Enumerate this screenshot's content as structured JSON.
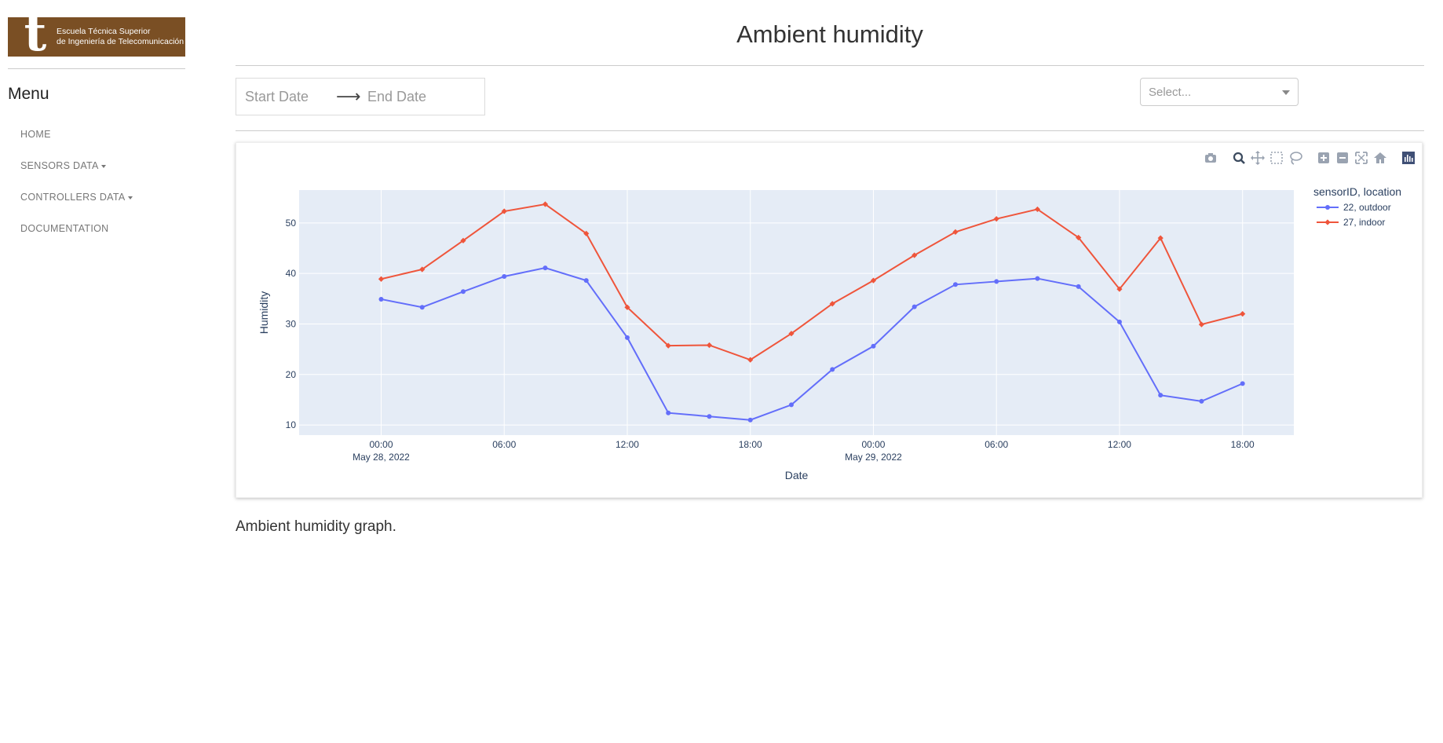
{
  "sidebar": {
    "logo_letter": "t",
    "logo_line1": "Escuela Técnica Superior",
    "logo_line2": "de Ingeniería de Telecomunicación",
    "menu_title": "Menu",
    "items": [
      {
        "label": "HOME",
        "dropdown": false
      },
      {
        "label": "SENSORS DATA",
        "dropdown": true
      },
      {
        "label": "CONTROLLERS DATA",
        "dropdown": true
      },
      {
        "label": "DOCUMENTATION",
        "dropdown": false
      }
    ]
  },
  "header": {
    "title": "Ambient humidity"
  },
  "filters": {
    "start_placeholder": "Start Date",
    "end_placeholder": "End Date",
    "select_placeholder": "Select..."
  },
  "modebar": {
    "icons": [
      "camera-icon",
      "zoom-icon",
      "pan-icon",
      "box-select-icon",
      "lasso-select-icon",
      "zoom-in-icon",
      "zoom-out-icon",
      "autoscale-icon",
      "reset-axes-icon",
      "plotly-logo-icon"
    ],
    "active": "zoom-icon"
  },
  "chart_data": {
    "type": "line",
    "xlabel": "Date",
    "ylabel": "Humidity",
    "legend_title": "sensorID, location",
    "legend_position": "top-right",
    "grid": true,
    "background": "#e5ecf6",
    "xlim": [
      "2022-05-27T20:00",
      "2022-05-29T20:30"
    ],
    "ylim": [
      8,
      56.5
    ],
    "y_ticks": [
      10,
      20,
      30,
      40,
      50
    ],
    "x_ticks": [
      {
        "t": "2022-05-28T00:00",
        "label": "00:00",
        "sub": "May 28, 2022"
      },
      {
        "t": "2022-05-28T06:00",
        "label": "06:00",
        "sub": ""
      },
      {
        "t": "2022-05-28T12:00",
        "label": "12:00",
        "sub": ""
      },
      {
        "t": "2022-05-28T18:00",
        "label": "18:00",
        "sub": ""
      },
      {
        "t": "2022-05-29T00:00",
        "label": "00:00",
        "sub": "May 29, 2022"
      },
      {
        "t": "2022-05-29T06:00",
        "label": "06:00",
        "sub": ""
      },
      {
        "t": "2022-05-29T12:00",
        "label": "12:00",
        "sub": ""
      },
      {
        "t": "2022-05-29T18:00",
        "label": "18:00",
        "sub": ""
      }
    ],
    "x": [
      "2022-05-28T00:00",
      "2022-05-28T02:00",
      "2022-05-28T04:00",
      "2022-05-28T06:00",
      "2022-05-28T08:00",
      "2022-05-28T10:00",
      "2022-05-28T12:00",
      "2022-05-28T14:00",
      "2022-05-28T16:00",
      "2022-05-28T18:00",
      "2022-05-28T20:00",
      "2022-05-28T22:00",
      "2022-05-29T00:00",
      "2022-05-29T02:00",
      "2022-05-29T04:00",
      "2022-05-29T06:00",
      "2022-05-29T08:00",
      "2022-05-29T10:00",
      "2022-05-29T12:00",
      "2022-05-29T14:00",
      "2022-05-29T16:00",
      "2022-05-29T18:00"
    ],
    "series": [
      {
        "name": "22, outdoor",
        "color": "#636efa",
        "values": [
          34.9,
          33.3,
          36.4,
          39.4,
          41.1,
          38.6,
          27.3,
          12.4,
          11.7,
          11.0,
          14.0,
          21.0,
          25.6,
          33.4,
          37.8,
          38.4,
          39.0,
          37.4,
          30.4,
          15.9,
          14.7,
          18.2
        ]
      },
      {
        "name": "27, indoor",
        "color": "#ef553b",
        "values": [
          38.9,
          40.8,
          46.5,
          52.3,
          53.7,
          47.9,
          33.3,
          25.7,
          25.8,
          22.9,
          28.1,
          34.0,
          38.6,
          43.6,
          48.2,
          50.8,
          52.7,
          47.1,
          36.9,
          47.0,
          29.9,
          32.0
        ]
      }
    ]
  },
  "caption": "Ambient humidity graph."
}
